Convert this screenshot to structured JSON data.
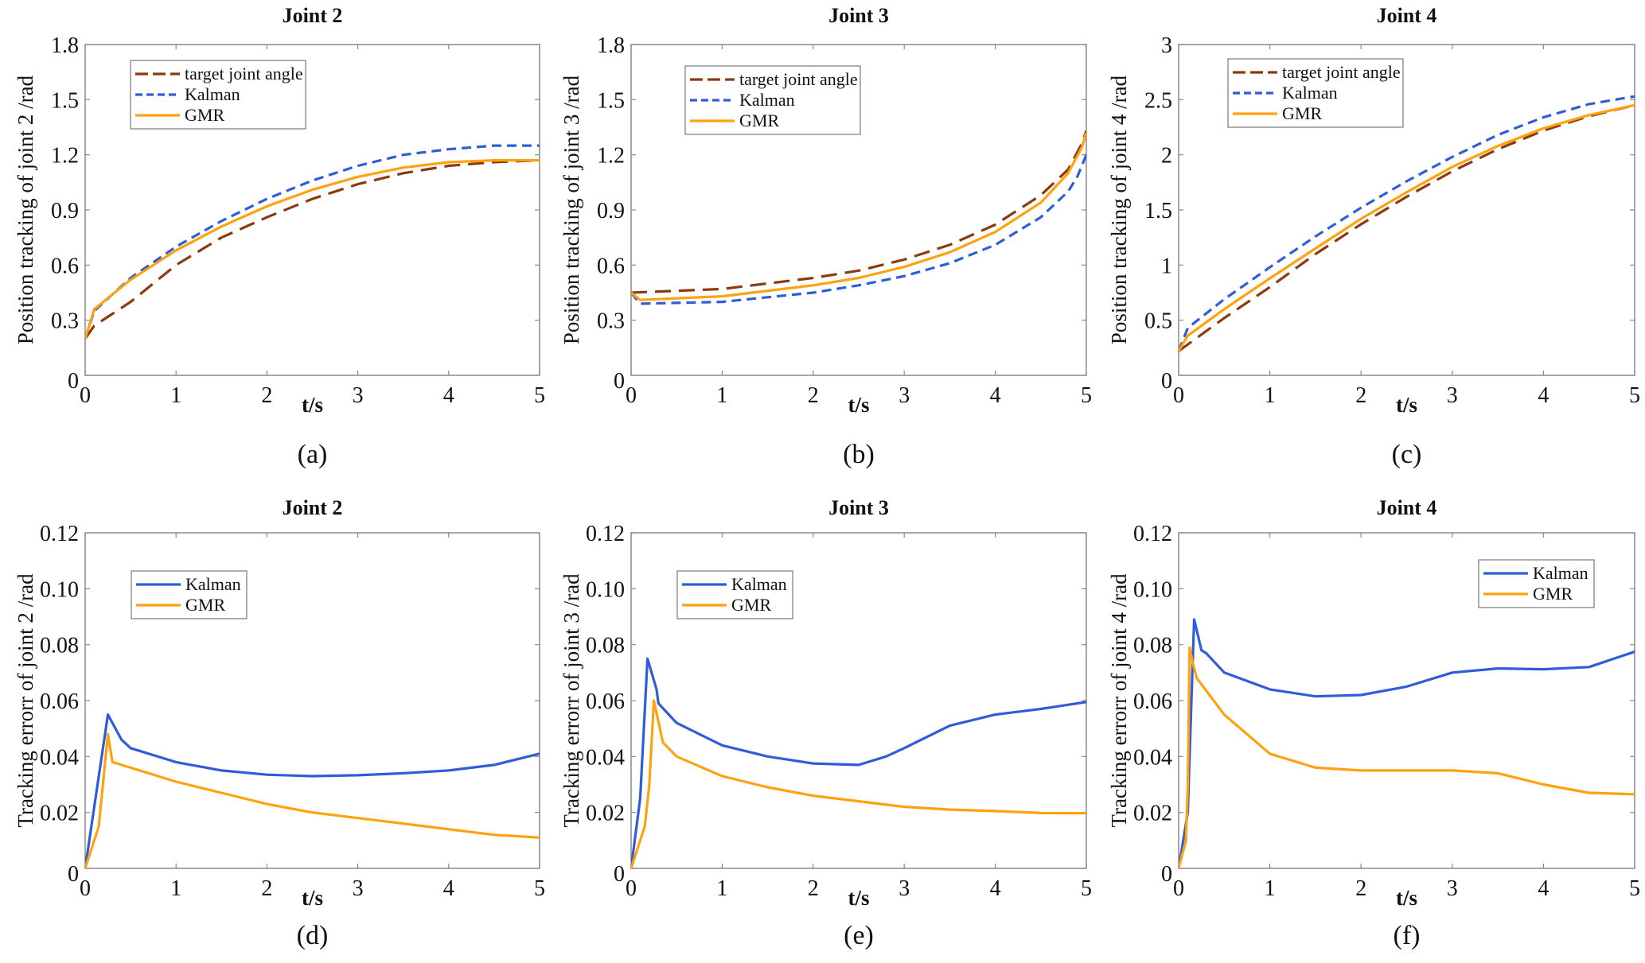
{
  "figure": {
    "colors": {
      "target": "#8B3A10",
      "kalman": "#2F5DDA",
      "gmr": "#FFA20F",
      "axis": "#8a8a8a"
    }
  },
  "chart_data": [
    {
      "id": "a",
      "type": "line",
      "panel_label": "(a)",
      "title": "Joint 2",
      "xlabel": "t/s",
      "ylabel": "Position tracking of joint 2 /rad",
      "xlim": [
        0,
        5
      ],
      "ylim": [
        0,
        1.8
      ],
      "xticks": [
        0,
        1,
        2,
        3,
        4,
        5
      ],
      "xtick_labels": [
        "0",
        "1",
        "2",
        "3",
        "4",
        "5"
      ],
      "yticks": [
        0,
        0.3,
        0.6,
        0.9,
        1.2,
        1.5,
        1.8
      ],
      "ytick_labels": [
        "0",
        "0.3",
        "0.6",
        "0.9",
        "1.2",
        "1.5",
        "1.8"
      ],
      "grid": false,
      "legend_position": "top-left",
      "series": [
        {
          "name": "target joint angle",
          "style": "long-dash",
          "color_key": "target",
          "x": [
            0,
            0.1,
            0.5,
            1,
            1.5,
            2,
            2.5,
            3,
            3.5,
            4,
            4.5,
            5
          ],
          "y": [
            0.2,
            0.27,
            0.4,
            0.6,
            0.75,
            0.86,
            0.96,
            1.04,
            1.1,
            1.14,
            1.16,
            1.17
          ]
        },
        {
          "name": "Kalman",
          "style": "dash",
          "color_key": "kalman",
          "x": [
            0,
            0.1,
            0.5,
            1,
            1.5,
            2,
            2.5,
            3,
            3.5,
            4,
            4.5,
            5
          ],
          "y": [
            0.2,
            0.35,
            0.53,
            0.7,
            0.84,
            0.96,
            1.06,
            1.14,
            1.2,
            1.23,
            1.25,
            1.25
          ]
        },
        {
          "name": "GMR",
          "style": "solid",
          "color_key": "gmr",
          "x": [
            0,
            0.1,
            0.5,
            1,
            1.5,
            2,
            2.5,
            3,
            3.5,
            4,
            4.5,
            5
          ],
          "y": [
            0.2,
            0.36,
            0.52,
            0.68,
            0.81,
            0.92,
            1.01,
            1.08,
            1.13,
            1.16,
            1.17,
            1.17
          ]
        }
      ]
    },
    {
      "id": "b",
      "type": "line",
      "panel_label": "(b)",
      "title": "Joint 3",
      "xlabel": "t/s",
      "ylabel": "Position tracking of joint 3 /rad",
      "xlim": [
        0,
        5
      ],
      "ylim": [
        0,
        1.8
      ],
      "xticks": [
        0,
        1,
        2,
        3,
        4,
        5
      ],
      "xtick_labels": [
        "0",
        "1",
        "2",
        "3",
        "4",
        "5"
      ],
      "yticks": [
        0,
        0.3,
        0.6,
        0.9,
        1.2,
        1.5,
        1.8
      ],
      "ytick_labels": [
        "0",
        "0.3",
        "0.6",
        "0.9",
        "1.2",
        "1.5",
        "1.8"
      ],
      "grid": false,
      "legend_position": "top-left",
      "series": [
        {
          "name": "target joint angle",
          "style": "long-dash",
          "color_key": "target",
          "x": [
            0,
            1,
            2,
            2.5,
            3,
            3.5,
            4,
            4.5,
            4.8,
            4.95,
            5
          ],
          "y": [
            0.45,
            0.47,
            0.53,
            0.57,
            0.63,
            0.71,
            0.82,
            0.98,
            1.12,
            1.26,
            1.33
          ]
        },
        {
          "name": "Kalman",
          "style": "dash",
          "color_key": "kalman",
          "x": [
            0,
            0.1,
            1,
            2,
            2.5,
            3,
            3.5,
            4,
            4.5,
            4.8,
            4.9,
            5
          ],
          "y": [
            0.45,
            0.39,
            0.4,
            0.45,
            0.49,
            0.54,
            0.61,
            0.71,
            0.86,
            1.0,
            1.08,
            1.2
          ]
        },
        {
          "name": "GMR",
          "style": "solid",
          "color_key": "gmr",
          "x": [
            0,
            0.1,
            1,
            2,
            2.5,
            3,
            3.5,
            4,
            4.5,
            4.8,
            4.95,
            5
          ],
          "y": [
            0.45,
            0.41,
            0.43,
            0.49,
            0.53,
            0.59,
            0.67,
            0.78,
            0.94,
            1.1,
            1.24,
            1.32
          ]
        }
      ]
    },
    {
      "id": "c",
      "type": "line",
      "panel_label": "(c)",
      "title": "Joint 4",
      "xlabel": "t/s",
      "ylabel": "Position tracking of joint 4 /rad",
      "xlim": [
        0,
        5
      ],
      "ylim": [
        0,
        3
      ],
      "xticks": [
        0,
        1,
        2,
        3,
        4,
        5
      ],
      "xtick_labels": [
        "0",
        "1",
        "2",
        "3",
        "4",
        "5"
      ],
      "yticks": [
        0,
        0.5,
        1,
        1.5,
        2,
        2.5,
        3
      ],
      "ytick_labels": [
        "0",
        "0.5",
        "1",
        "1.5",
        "2",
        "2.5",
        "3"
      ],
      "grid": false,
      "legend_position": "top-left",
      "series": [
        {
          "name": "target joint angle",
          "style": "long-dash",
          "color_key": "target",
          "x": [
            0,
            0.5,
            1,
            1.5,
            2,
            2.5,
            3,
            3.5,
            4,
            4.5,
            5
          ],
          "y": [
            0.22,
            0.52,
            0.8,
            1.1,
            1.37,
            1.62,
            1.85,
            2.05,
            2.22,
            2.35,
            2.45
          ]
        },
        {
          "name": "Kalman",
          "style": "dash",
          "color_key": "kalman",
          "x": [
            0,
            0.1,
            0.5,
            1,
            1.5,
            2,
            2.5,
            3,
            3.5,
            4,
            4.5,
            5
          ],
          "y": [
            0.22,
            0.43,
            0.69,
            0.98,
            1.26,
            1.52,
            1.76,
            1.98,
            2.18,
            2.34,
            2.46,
            2.53
          ]
        },
        {
          "name": "GMR",
          "style": "solid",
          "color_key": "gmr",
          "x": [
            0,
            0.1,
            0.5,
            1,
            1.5,
            2,
            2.5,
            3,
            3.5,
            4,
            4.5,
            5
          ],
          "y": [
            0.22,
            0.36,
            0.6,
            0.88,
            1.15,
            1.42,
            1.66,
            1.89,
            2.08,
            2.24,
            2.36,
            2.45
          ]
        }
      ]
    },
    {
      "id": "d",
      "type": "line",
      "panel_label": "(d)",
      "title": "Joint 2",
      "xlabel": "t/s",
      "ylabel": "Tracking errorr of joint 2 /rad",
      "xlim": [
        0,
        5
      ],
      "ylim": [
        0,
        0.12
      ],
      "xticks": [
        0,
        1,
        2,
        3,
        4,
        5
      ],
      "xtick_labels": [
        "0",
        "1",
        "2",
        "3",
        "4",
        "5"
      ],
      "yticks": [
        0,
        0.02,
        0.04,
        0.06,
        0.08,
        0.1,
        0.12
      ],
      "ytick_labels": [
        "0",
        "0.02",
        "0.04",
        "0.06",
        "0.08",
        "0.10",
        "0.12"
      ],
      "grid": false,
      "legend_position": "top-left",
      "series": [
        {
          "name": "Kalman",
          "style": "solid",
          "color_key": "kalman",
          "x": [
            0,
            0.25,
            0.4,
            0.5,
            1,
            1.5,
            2,
            2.5,
            3,
            3.5,
            4,
            4.5,
            5
          ],
          "y": [
            0,
            0.055,
            0.046,
            0.043,
            0.038,
            0.035,
            0.0335,
            0.033,
            0.0333,
            0.034,
            0.035,
            0.037,
            0.041
          ]
        },
        {
          "name": "GMR",
          "style": "solid",
          "color_key": "gmr",
          "x": [
            0,
            0.15,
            0.25,
            0.3,
            0.5,
            1,
            1.5,
            2,
            2.5,
            3,
            3.5,
            4,
            4.5,
            5
          ],
          "y": [
            0,
            0.015,
            0.048,
            0.038,
            0.036,
            0.031,
            0.027,
            0.023,
            0.02,
            0.018,
            0.016,
            0.014,
            0.012,
            0.011
          ]
        }
      ]
    },
    {
      "id": "e",
      "type": "line",
      "panel_label": "(e)",
      "title": "Joint 3",
      "xlabel": "t/s",
      "ylabel": "Tracking errorr of joint 3 /rad",
      "xlim": [
        0,
        5
      ],
      "ylim": [
        0,
        0.12
      ],
      "xticks": [
        0,
        1,
        2,
        3,
        4,
        5
      ],
      "xtick_labels": [
        "0",
        "1",
        "2",
        "3",
        "4",
        "5"
      ],
      "yticks": [
        0,
        0.02,
        0.04,
        0.06,
        0.08,
        0.1,
        0.12
      ],
      "ytick_labels": [
        "0",
        "0.02",
        "0.04",
        "0.06",
        "0.08",
        "0.10",
        "0.12"
      ],
      "grid": false,
      "legend_position": "top-left",
      "series": [
        {
          "name": "Kalman",
          "style": "solid",
          "color_key": "kalman",
          "x": [
            0,
            0.1,
            0.18,
            0.28,
            0.3,
            0.5,
            1,
            1.5,
            2,
            2.5,
            2.8,
            3,
            3.5,
            4,
            4.5,
            5
          ],
          "y": [
            0,
            0.025,
            0.075,
            0.064,
            0.059,
            0.052,
            0.044,
            0.04,
            0.0375,
            0.037,
            0.04,
            0.043,
            0.051,
            0.055,
            0.057,
            0.0595
          ]
        },
        {
          "name": "GMR",
          "style": "solid",
          "color_key": "gmr",
          "x": [
            0,
            0.15,
            0.2,
            0.25,
            0.35,
            0.5,
            1,
            1.5,
            2,
            2.5,
            3,
            3.5,
            4,
            4.5,
            5
          ],
          "y": [
            0,
            0.015,
            0.03,
            0.06,
            0.045,
            0.04,
            0.033,
            0.029,
            0.026,
            0.024,
            0.022,
            0.021,
            0.0205,
            0.0198,
            0.0197
          ]
        }
      ]
    },
    {
      "id": "f",
      "type": "line",
      "panel_label": "(f)",
      "title": "Joint 4",
      "xlabel": "t/s",
      "ylabel": "Tracking errorr of joint 4 /rad",
      "xlim": [
        0,
        5
      ],
      "ylim": [
        0,
        0.12
      ],
      "xticks": [
        0,
        1,
        2,
        3,
        4,
        5
      ],
      "xtick_labels": [
        "0",
        "1",
        "2",
        "3",
        "4",
        "5"
      ],
      "yticks": [
        0,
        0.02,
        0.04,
        0.06,
        0.08,
        0.1,
        0.12
      ],
      "ytick_labels": [
        "0",
        "0.02",
        "0.04",
        "0.06",
        "0.08",
        "0.10",
        "0.12"
      ],
      "grid": false,
      "legend_position": "top-right",
      "series": [
        {
          "name": "Kalman",
          "style": "solid",
          "color_key": "kalman",
          "x": [
            0,
            0.1,
            0.15,
            0.17,
            0.25,
            0.3,
            0.5,
            1,
            1.5,
            2,
            2.5,
            3,
            3.5,
            4,
            4.5,
            5
          ],
          "y": [
            0,
            0.02,
            0.07,
            0.089,
            0.078,
            0.077,
            0.07,
            0.064,
            0.0615,
            0.062,
            0.065,
            0.07,
            0.0715,
            0.0712,
            0.072,
            0.0775
          ]
        },
        {
          "name": "GMR",
          "style": "solid",
          "color_key": "gmr",
          "x": [
            0,
            0.08,
            0.1,
            0.12,
            0.15,
            0.2,
            0.5,
            1,
            1.5,
            2,
            2.5,
            3,
            3.5,
            4,
            4.5,
            5
          ],
          "y": [
            0,
            0.01,
            0.03,
            0.079,
            0.074,
            0.068,
            0.055,
            0.041,
            0.036,
            0.035,
            0.035,
            0.035,
            0.034,
            0.03,
            0.027,
            0.0265
          ]
        }
      ]
    }
  ]
}
